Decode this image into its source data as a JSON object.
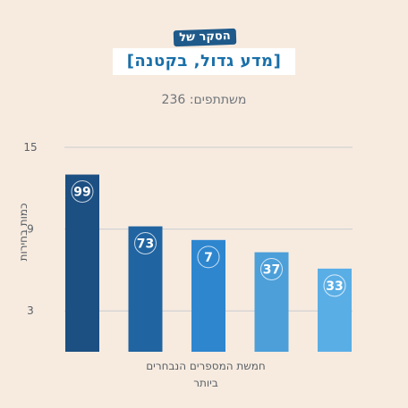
{
  "header": {
    "tag": "הסקר של",
    "title": "[מדע גדול, בקטנה]"
  },
  "subtitle": "משתתפים: 236",
  "chart_data": {
    "type": "bar",
    "title": "[מדע גדול, בקטנה]",
    "subtitle": "משתתפים: 236",
    "xlabel": "חמשת המספרים הנבחרים ביותר",
    "ylabel": "כמות בחירות",
    "categories": [
      "99",
      "73",
      "7",
      "37",
      "33"
    ],
    "values": [
      13,
      9.2,
      8.2,
      7.3,
      6.1
    ],
    "yticks": [
      3,
      9,
      15
    ],
    "ylim": [
      0,
      15
    ],
    "grid": true,
    "colors": [
      "#1c4f82",
      "#2064a1",
      "#2e86cf",
      "#4c9fd9",
      "#5aaee6"
    ]
  }
}
